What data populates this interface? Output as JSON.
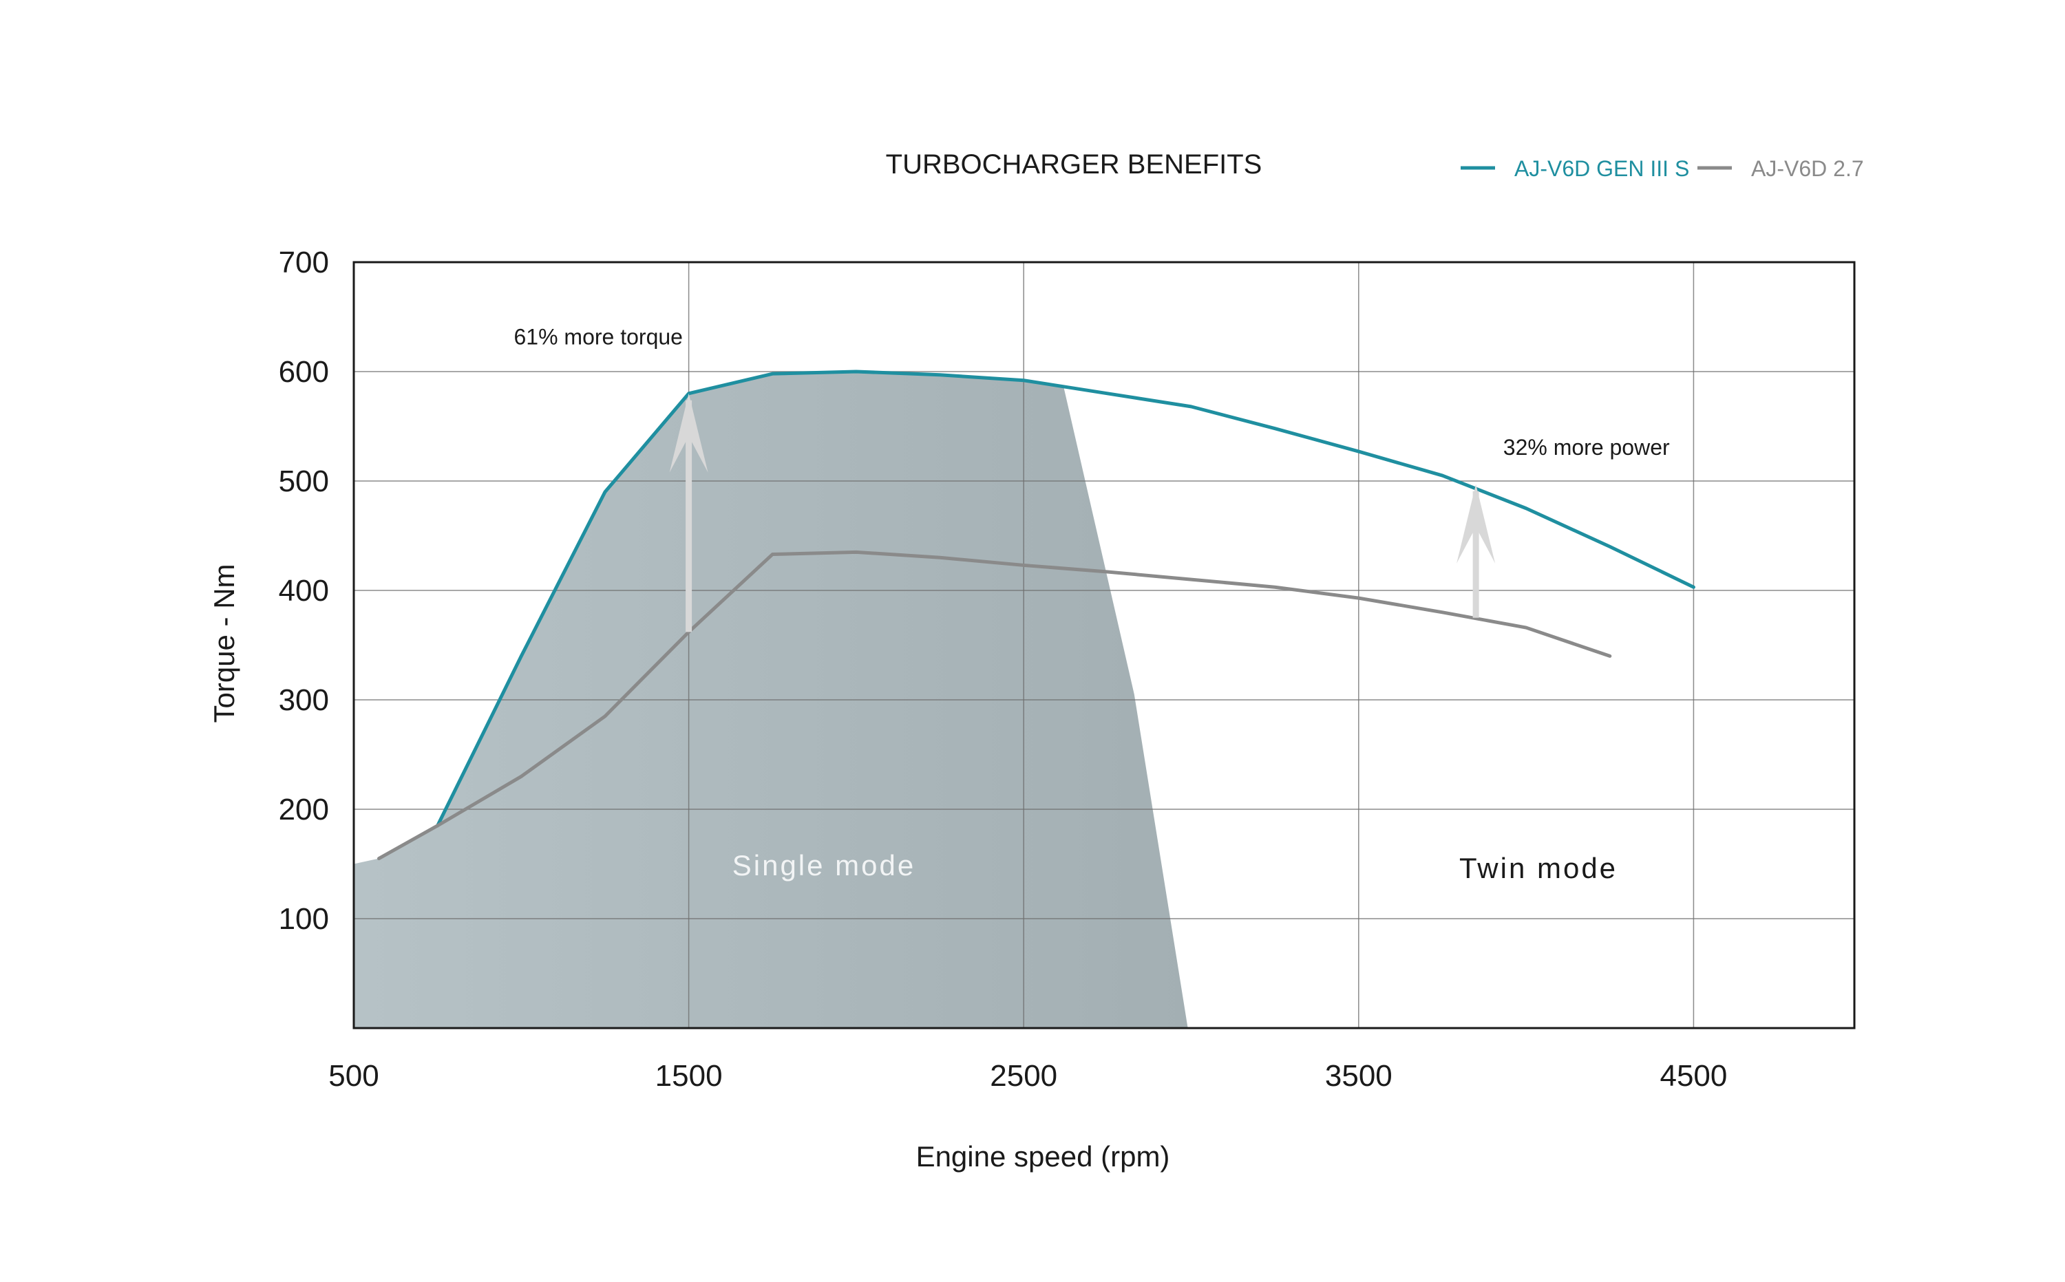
{
  "chart_data": {
    "type": "line",
    "title": "TURBOCHARGER BENEFITS",
    "xlabel": "Engine speed (rpm)",
    "ylabel": "Torque - Nm",
    "xlim": [
      500,
      4980
    ],
    "ylim": [
      0,
      700
    ],
    "x_ticks": [
      500,
      1500,
      2500,
      3500,
      4500
    ],
    "x_tick_labels": [
      "500",
      "1500",
      "2500",
      "3500",
      "4500"
    ],
    "y_ticks": [
      100,
      200,
      300,
      400,
      500,
      600,
      700
    ],
    "y_tick_labels": [
      "100",
      "200",
      "300",
      "400",
      "500",
      "600",
      "700"
    ],
    "grid": true,
    "legend_position": "top-right",
    "series": [
      {
        "name": "AJ-V6D GEN III S",
        "color": "#1f8fa0",
        "points": [
          [
            750,
            185
          ],
          [
            1000,
            340
          ],
          [
            1250,
            490
          ],
          [
            1500,
            580
          ],
          [
            1750,
            598
          ],
          [
            2000,
            600
          ],
          [
            2250,
            597
          ],
          [
            2500,
            592
          ],
          [
            2750,
            580
          ],
          [
            3000,
            568
          ],
          [
            3250,
            548
          ],
          [
            3500,
            527
          ],
          [
            3750,
            505
          ],
          [
            4000,
            475
          ],
          [
            4250,
            440
          ],
          [
            4500,
            403
          ]
        ]
      },
      {
        "name": "AJ-V6D 2.7",
        "color": "#8a8a8a",
        "points": [
          [
            575,
            155
          ],
          [
            750,
            185
          ],
          [
            1000,
            230
          ],
          [
            1250,
            285
          ],
          [
            1500,
            362
          ],
          [
            1750,
            433
          ],
          [
            2000,
            435
          ],
          [
            2250,
            430
          ],
          [
            2500,
            423
          ],
          [
            2750,
            417
          ],
          [
            3000,
            410
          ],
          [
            3250,
            403
          ],
          [
            3500,
            393
          ],
          [
            3750,
            380
          ],
          [
            4000,
            366
          ],
          [
            4250,
            340
          ]
        ]
      }
    ],
    "shaded_region": {
      "label": "Single mode",
      "color": "#aab7bb",
      "points": [
        [
          500,
          150
        ],
        [
          575,
          155
        ],
        [
          750,
          185
        ],
        [
          1000,
          340
        ],
        [
          1250,
          490
        ],
        [
          1500,
          580
        ],
        [
          1750,
          598
        ],
        [
          2000,
          600
        ],
        [
          2250,
          597
        ],
        [
          2500,
          592
        ],
        [
          2620,
          585
        ],
        [
          2830,
          305
        ],
        [
          2990,
          0
        ],
        [
          500,
          0
        ]
      ]
    },
    "region_labels": {
      "single": "Single mode",
      "twin": "Twin mode"
    },
    "annotations": [
      {
        "text": "61% more torque",
        "x": 1500,
        "from": 362,
        "to": 580,
        "label_x": 1230,
        "label_y": 625
      },
      {
        "text": "32% more power",
        "x": 3850,
        "from": 375,
        "to": 497,
        "label_x": 4180,
        "label_y": 524
      }
    ]
  }
}
